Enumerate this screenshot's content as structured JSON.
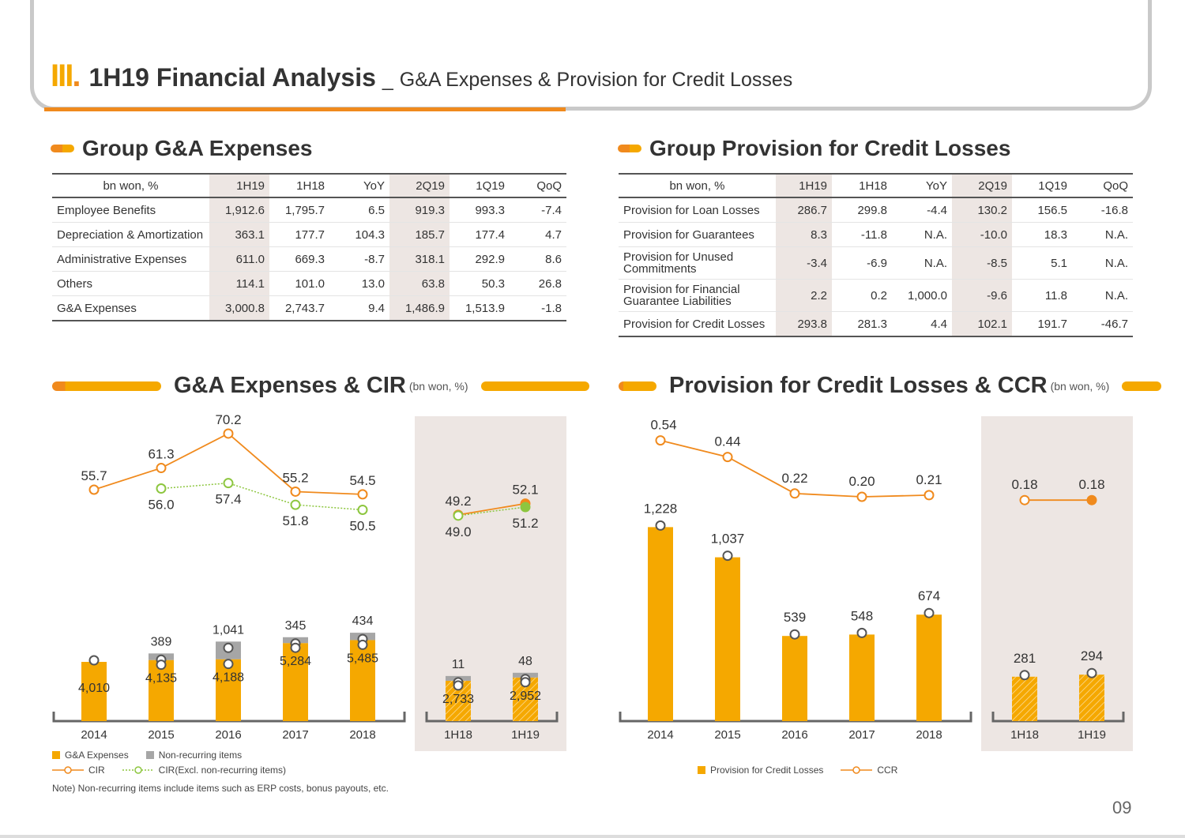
{
  "header": {
    "roman": "III",
    "title": "1H19 Financial Analysis",
    "separator": "_",
    "subtitle": "G&A Expenses & Provision for Credit Losses"
  },
  "ga_table": {
    "title": "Group G&A Expenses",
    "columns": [
      "bn won, %",
      "1H19",
      "1H18",
      "YoY",
      "2Q19",
      "1Q19",
      "QoQ"
    ],
    "rows": [
      [
        "Employee Benefits",
        "1,912.6",
        "1,795.7",
        "6.5",
        "919.3",
        "993.3",
        "-7.4"
      ],
      [
        "Depreciation & Amortization",
        "363.1",
        "177.7",
        "104.3",
        "185.7",
        "177.4",
        "4.7"
      ],
      [
        "Administrative Expenses",
        "611.0",
        "669.3",
        "-8.7",
        "318.1",
        "292.9",
        "8.6"
      ],
      [
        "Others",
        "114.1",
        "101.0",
        "13.0",
        "63.8",
        "50.3",
        "26.8"
      ],
      [
        "G&A Expenses",
        "3,000.8",
        "2,743.7",
        "9.4",
        "1,486.9",
        "1,513.9",
        "-1.8"
      ]
    ]
  },
  "prov_table": {
    "title": "Group Provision for Credit Losses",
    "columns": [
      "bn won, %",
      "1H19",
      "1H18",
      "YoY",
      "2Q19",
      "1Q19",
      "QoQ"
    ],
    "rows": [
      [
        "Provision for Loan Losses",
        "286.7",
        "299.8",
        "-4.4",
        "130.2",
        "156.5",
        "-16.8"
      ],
      [
        "Provision for Guarantees",
        "8.3",
        "-11.8",
        "N.A.",
        "-10.0",
        "18.3",
        "N.A."
      ],
      [
        "Provision for Unused Commitments",
        "-3.4",
        "-6.9",
        "N.A.",
        "-8.5",
        "5.1",
        "N.A."
      ],
      [
        "Provision for Financial Guarantee Liabilities",
        "2.2",
        "0.2",
        "1,000.0",
        "-9.6",
        "11.8",
        "N.A."
      ],
      [
        "Provision for Credit Losses",
        "293.8",
        "281.3",
        "4.4",
        "102.1",
        "191.7",
        "-46.7"
      ]
    ]
  },
  "chart_ga": {
    "title": "G&A Expenses & CIR",
    "unit": "(bn won, %)"
  },
  "chart_prov": {
    "title": "Provision for Credit Losses & CCR",
    "unit": "(bn won, %)"
  },
  "legend_ga": {
    "ga": "G&A Expenses",
    "nonrec": "Non-recurring items",
    "cir": "CIR",
    "cir_excl": "CIR(Excl. non-recurring items)"
  },
  "legend_prov": {
    "prov": "Provision for Credit Losses",
    "ccr": "CCR"
  },
  "note": "Note) Non-recurring items include items such as ERP costs, bonus payouts, etc.",
  "page_number": "09",
  "colors": {
    "orange": "#f08a1d",
    "amber": "#f5a800",
    "gray": "#a6a6a6",
    "green": "#8dc63f",
    "shade": "#ede6e3"
  },
  "chart_data": [
    {
      "type": "bar",
      "title": "G&A Expenses & CIR",
      "categories": [
        "2014",
        "2015",
        "2016",
        "2017",
        "2018",
        "1H18",
        "1H19"
      ],
      "series": [
        {
          "name": "G&A Expenses",
          "values": [
            4010,
            4135,
            4188,
            5284,
            5485,
            2733,
            2952
          ],
          "labels": [
            "4,010",
            "4,135",
            "4,188",
            "5,284",
            "5,485",
            "2,733",
            "2,952"
          ]
        },
        {
          "name": "Non-recurring items",
          "values": [
            null,
            389,
            1041,
            345,
            434,
            11,
            48
          ],
          "labels": [
            "",
            "389",
            "1,041",
            "345",
            "434",
            "11",
            "48"
          ]
        },
        {
          "name": "CIR",
          "values": [
            55.7,
            61.3,
            70.2,
            55.2,
            54.5,
            49.2,
            52.1
          ],
          "labels": [
            "55.7",
            "61.3",
            "70.2",
            "55.2",
            "54.5",
            "49.2",
            "52.1"
          ]
        },
        {
          "name": "CIR(Excl. non-recurring items)",
          "values": [
            null,
            56.0,
            57.4,
            51.8,
            50.5,
            49.0,
            51.2
          ],
          "labels": [
            "",
            "56.0",
            "57.4",
            "51.8",
            "50.5",
            "49.0",
            "51.2"
          ]
        }
      ]
    },
    {
      "type": "bar",
      "title": "Provision for Credit Losses & CCR",
      "categories": [
        "2014",
        "2015",
        "2016",
        "2017",
        "2018",
        "1H18",
        "1H19"
      ],
      "series": [
        {
          "name": "Provision for Credit Losses",
          "values": [
            1228,
            1037,
            539,
            548,
            674,
            281,
            294
          ],
          "labels": [
            "1,228",
            "1,037",
            "539",
            "548",
            "674",
            "281",
            "294"
          ]
        },
        {
          "name": "CCR",
          "values": [
            0.54,
            0.44,
            0.22,
            0.2,
            0.21,
            0.18,
            0.18
          ],
          "labels": [
            "0.54",
            "0.44",
            "0.22",
            "0.20",
            "0.21",
            "0.18",
            "0.18"
          ]
        }
      ]
    }
  ]
}
